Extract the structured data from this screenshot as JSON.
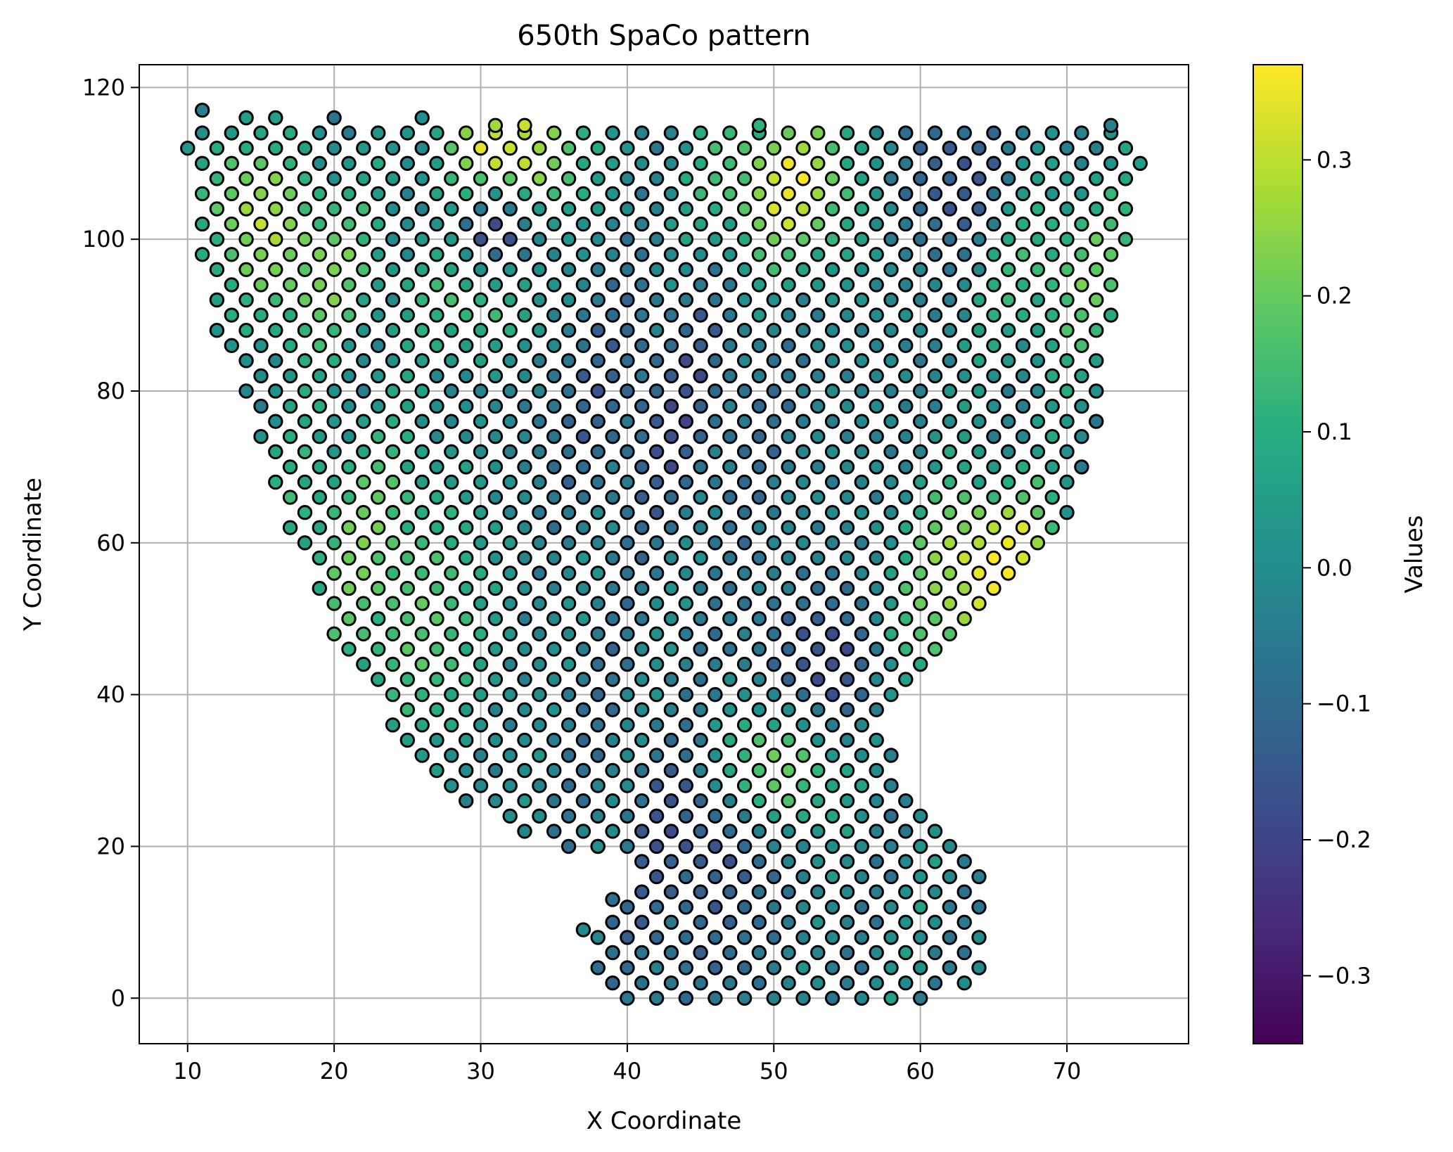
{
  "chart_data": {
    "type": "scatter",
    "title": "650th SpaCo pattern",
    "xlabel": "X Coordinate",
    "ylabel": "Y Coordinate",
    "xlim": [
      6.7,
      78.3
    ],
    "ylim": [
      -6,
      123
    ],
    "xticks": [
      10,
      20,
      30,
      40,
      50,
      60,
      70
    ],
    "yticks": [
      0,
      20,
      40,
      60,
      80,
      100,
      120
    ],
    "grid": true,
    "colorbar": {
      "label": "Values",
      "colormap": "viridis",
      "range": [
        -0.35,
        0.37
      ],
      "ticks": [
        -0.3,
        -0.2,
        -0.1,
        0.0,
        0.1,
        0.2,
        0.3
      ],
      "tick_labels": [
        "−0.3",
        "−0.2",
        "−0.1",
        "0.0",
        "0.1",
        "0.2",
        "0.3"
      ]
    },
    "marker": {
      "edge_color": "#000000",
      "shape": "circle"
    },
    "grid_spots": {
      "x_step": 1,
      "y_step": 2,
      "row_span": [
        [
          0,
          40,
          62
        ],
        [
          2,
          38,
          63
        ],
        [
          4,
          38,
          64
        ],
        [
          6,
          38,
          64
        ],
        [
          8,
          38,
          64
        ],
        [
          10,
          38,
          64
        ],
        [
          12,
          39,
          64
        ],
        [
          14,
          40,
          64
        ],
        [
          16,
          41,
          64
        ],
        [
          18,
          41,
          64
        ],
        [
          20,
          35,
          63
        ],
        [
          22,
          33,
          62
        ],
        [
          24,
          31,
          61
        ],
        [
          26,
          29,
          60
        ],
        [
          28,
          28,
          59
        ],
        [
          30,
          26,
          58
        ],
        [
          32,
          25,
          58
        ],
        [
          34,
          24,
          57
        ],
        [
          36,
          24,
          57
        ],
        [
          38,
          24,
          57
        ],
        [
          40,
          23,
          58
        ],
        [
          42,
          22,
          59
        ],
        [
          44,
          22,
          60
        ],
        [
          46,
          21,
          61
        ],
        [
          48,
          20,
          62
        ],
        [
          50,
          20,
          63
        ],
        [
          52,
          20,
          64
        ],
        [
          54,
          19,
          66
        ],
        [
          56,
          19,
          67
        ],
        [
          58,
          18,
          68
        ],
        [
          60,
          18,
          69
        ],
        [
          62,
          17,
          69
        ],
        [
          64,
          17,
          70
        ],
        [
          66,
          17,
          70
        ],
        [
          68,
          16,
          71
        ],
        [
          70,
          16,
          71
        ],
        [
          72,
          15,
          71
        ],
        [
          74,
          15,
          72
        ],
        [
          76,
          15,
          72
        ],
        [
          78,
          14,
          72
        ],
        [
          80,
          14,
          72
        ],
        [
          82,
          14,
          72
        ],
        [
          84,
          14,
          72
        ],
        [
          86,
          13,
          72
        ],
        [
          88,
          12,
          72
        ],
        [
          90,
          12,
          73
        ],
        [
          92,
          12,
          73
        ],
        [
          94,
          12,
          73
        ],
        [
          96,
          12,
          73
        ],
        [
          98,
          11,
          74
        ],
        [
          100,
          11,
          74
        ],
        [
          102,
          11,
          74
        ],
        [
          104,
          11,
          74
        ],
        [
          106,
          11,
          74
        ],
        [
          108,
          11,
          74
        ],
        [
          110,
          10,
          75
        ],
        [
          112,
          10,
          75
        ],
        [
          114,
          10,
          74
        ]
      ]
    },
    "extra_spots": [
      {
        "x": 37,
        "y": 9
      },
      {
        "x": 39,
        "y": 13
      },
      {
        "x": 38,
        "y": 20
      },
      {
        "x": 11,
        "y": 117
      },
      {
        "x": 20,
        "y": 116
      },
      {
        "x": 14,
        "y": 116
      },
      {
        "x": 16,
        "y": 116
      },
      {
        "x": 26,
        "y": 116
      },
      {
        "x": 73,
        "y": 115
      },
      {
        "x": 49,
        "y": 115
      },
      {
        "x": 31,
        "y": 115
      },
      {
        "x": 33,
        "y": 115
      }
    ],
    "excluded_spots": [
      {
        "x": 62,
        "y": 0
      },
      {
        "x": 40,
        "y": 2
      }
    ],
    "hotspots": [
      {
        "x": 32,
        "y": 111,
        "radius": 4.5,
        "value": 0.37
      },
      {
        "x": 51,
        "y": 107,
        "radius": 5.0,
        "value": 0.33
      },
      {
        "x": 65,
        "y": 59,
        "radius": 4.5,
        "value": 0.33
      },
      {
        "x": 50,
        "y": 30,
        "radius": 4.0,
        "value": 0.3
      },
      {
        "x": 18,
        "y": 96,
        "radius": 5.0,
        "value": 0.22
      },
      {
        "x": 14,
        "y": 106,
        "radius": 4.0,
        "value": 0.18
      },
      {
        "x": 22,
        "y": 62,
        "radius": 7.0,
        "value": 0.16
      },
      {
        "x": 26,
        "y": 45,
        "radius": 6.0,
        "value": 0.12
      },
      {
        "x": 70,
        "y": 96,
        "radius": 6.0,
        "value": 0.18
      },
      {
        "x": 62,
        "y": 47,
        "radius": 5.0,
        "value": 0.2
      },
      {
        "x": 30,
        "y": 92,
        "radius": 4.0,
        "value": 0.16
      },
      {
        "x": 31,
        "y": 102,
        "radius": 3.0,
        "value": -0.34
      },
      {
        "x": 54,
        "y": 44,
        "radius": 5.0,
        "value": -0.2
      },
      {
        "x": 62,
        "y": 107,
        "radius": 5.0,
        "value": -0.18
      },
      {
        "x": 46,
        "y": 24,
        "radius": 5.0,
        "value": -0.18
      },
      {
        "x": 42,
        "y": 78,
        "radius": 8.0,
        "value": -0.14
      },
      {
        "x": 36,
        "y": 40,
        "radius": 6.0,
        "value": -0.06
      },
      {
        "x": 44,
        "y": 8,
        "radius": 6.0,
        "value": -0.1
      }
    ],
    "base_value": -0.02
  }
}
